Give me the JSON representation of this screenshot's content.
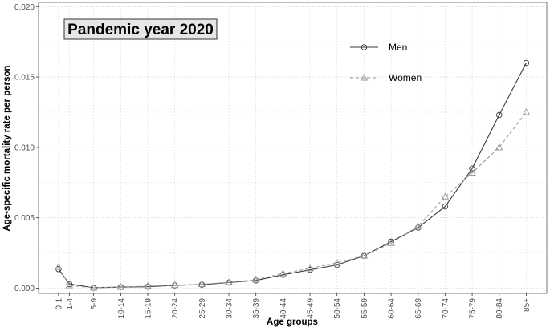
{
  "chart_data": {
    "type": "line",
    "title": "Pandemic year 2020",
    "xlabel": "Age groups",
    "ylabel": "Age-specific mortality rate per person",
    "categories": [
      "0-1",
      "1-4",
      "5-9",
      "10-14",
      "15-19",
      "20-24",
      "25-29",
      "30-34",
      "35-39",
      "40-44",
      "45-49",
      "50-54",
      "55-59",
      "60-64",
      "65-69",
      "70-74",
      "75-79",
      "80-84",
      "85+"
    ],
    "x": [
      0.5,
      2.5,
      7,
      12,
      17,
      22,
      27,
      32,
      37,
      42,
      47,
      52,
      57,
      62,
      67,
      72,
      77,
      82,
      87
    ],
    "ylim": [
      0,
      0.02
    ],
    "yticks": [
      "0.000",
      "0.005",
      "0.010",
      "0.015",
      "0.020"
    ],
    "ytick_values": [
      0,
      0.005,
      0.01,
      0.015,
      0.02
    ],
    "grid": true,
    "legend_position": "top-right",
    "series": [
      {
        "name": "Men",
        "color": "#3a3a3a",
        "line_style": "solid",
        "marker": "circle",
        "values": [
          0.00135,
          0.0003,
          3e-05,
          8e-05,
          0.0001,
          0.0002,
          0.00025,
          0.0004,
          0.00055,
          0.00095,
          0.0013,
          0.00165,
          0.0023,
          0.0033,
          0.0043,
          0.0058,
          0.0085,
          0.0123,
          0.016
        ]
      },
      {
        "name": "Women",
        "color": "#9a9a9a",
        "line_style": "dashed",
        "marker": "triangle",
        "values": [
          0.0015,
          0.0002,
          3e-05,
          8e-05,
          0.00015,
          0.00022,
          0.00028,
          0.00042,
          0.0006,
          0.00105,
          0.0014,
          0.0018,
          0.0023,
          0.0032,
          0.0044,
          0.0065,
          0.0082,
          0.01,
          0.0125
        ]
      }
    ]
  }
}
